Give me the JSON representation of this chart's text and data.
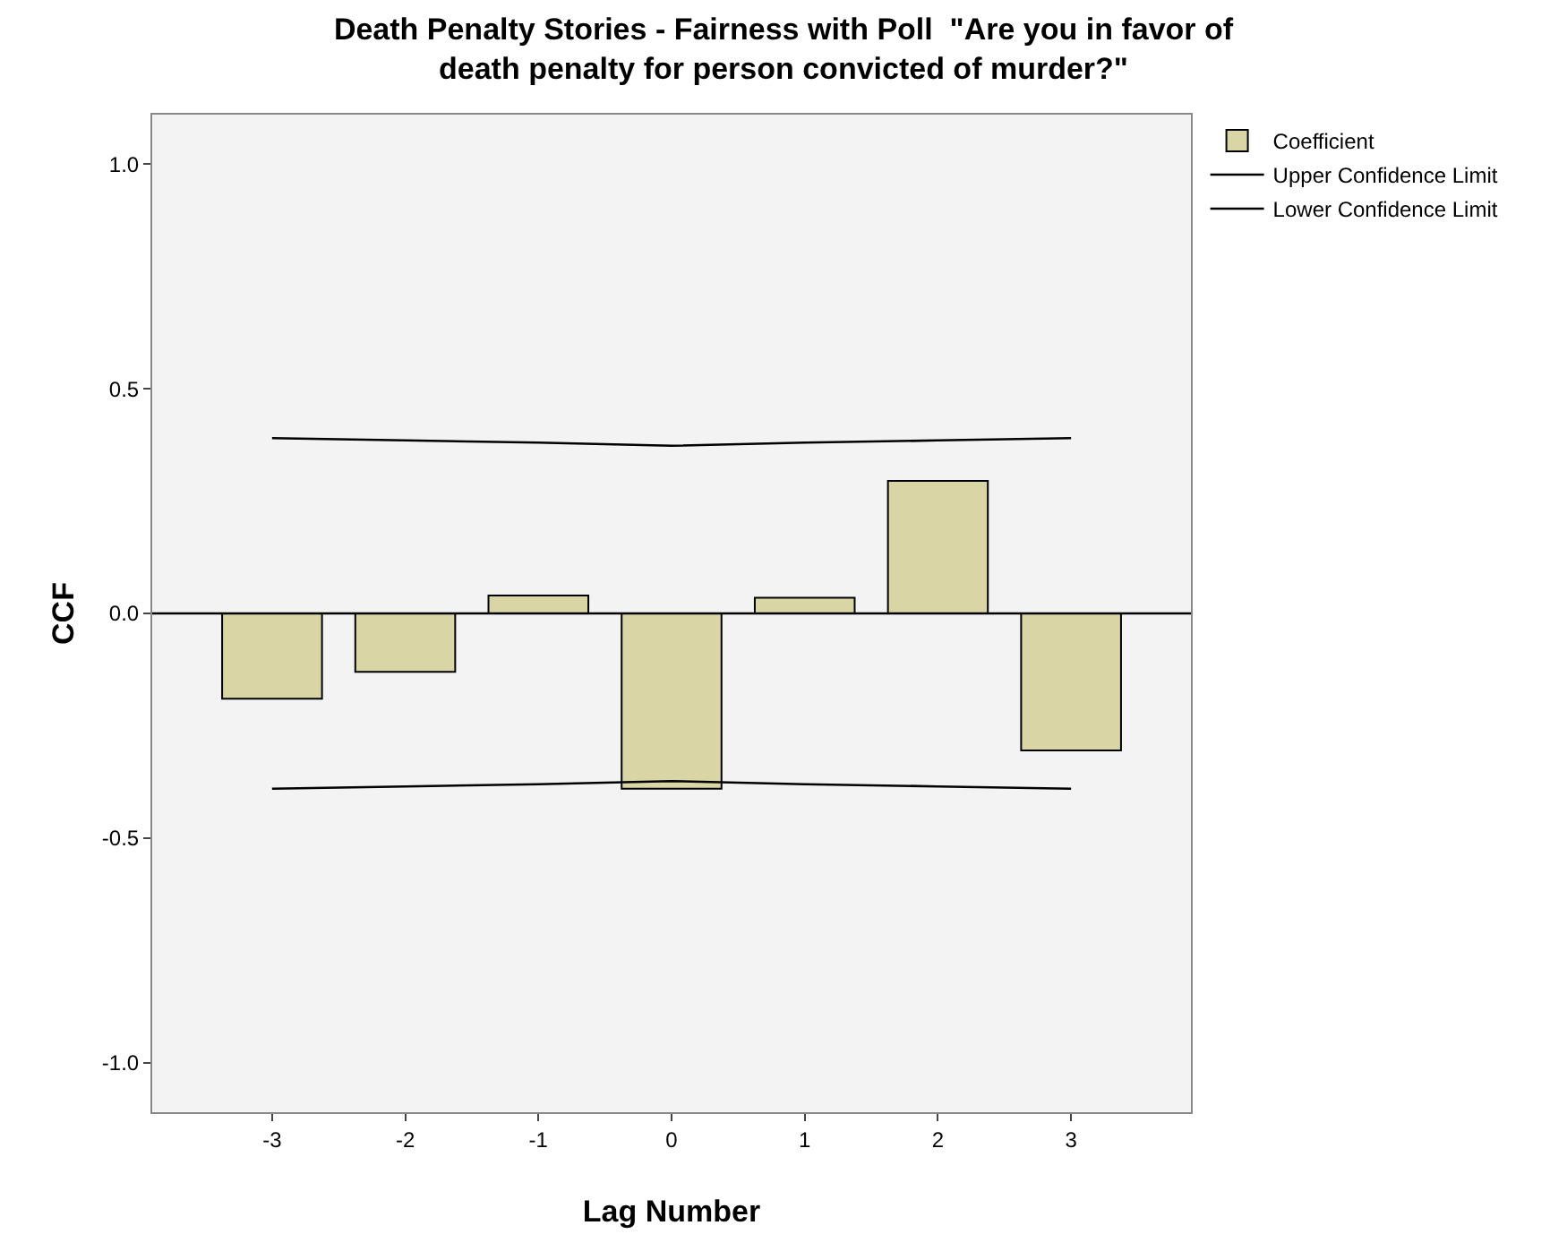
{
  "chart_data": {
    "type": "bar",
    "title": "Death Penalty Stories - Fairness with Poll  \"Are you in favor of\ndeath penalty for person convicted of murder?\"",
    "xlabel": "Lag Number",
    "ylabel": "CCF",
    "categories": [
      "-3",
      "-2",
      "-1",
      "0",
      "1",
      "2",
      "3"
    ],
    "series": [
      {
        "name": "Coefficient",
        "color": "#d9d5a5",
        "values": [
          -0.19,
          -0.13,
          0.04,
          -0.39,
          0.035,
          0.295,
          -0.305
        ]
      },
      {
        "name": "Upper Confidence Limit",
        "type": "line",
        "color": "#000000",
        "values": [
          0.39,
          0.385,
          0.38,
          0.373,
          0.38,
          0.385,
          0.39
        ]
      },
      {
        "name": "Lower Confidence Limit",
        "type": "line",
        "color": "#000000",
        "values": [
          -0.39,
          -0.385,
          -0.38,
          -0.373,
          -0.38,
          -0.385,
          -0.39
        ]
      }
    ],
    "ylim": [
      -1.11,
      1.11
    ],
    "yticks": [
      {
        "value": -1,
        "label": "-1.0"
      },
      {
        "value": -0.5,
        "label": "-0.5"
      },
      {
        "value": 0,
        "label": "0.0"
      },
      {
        "value": 0.5,
        "label": "0.5"
      },
      {
        "value": 1,
        "label": "1.0"
      }
    ],
    "ref_lines": [
      {
        "axis": "y",
        "value": 0,
        "color": "#000000"
      }
    ],
    "grid": false,
    "legend": "top right",
    "marker": "none",
    "line_style": "solid"
  }
}
